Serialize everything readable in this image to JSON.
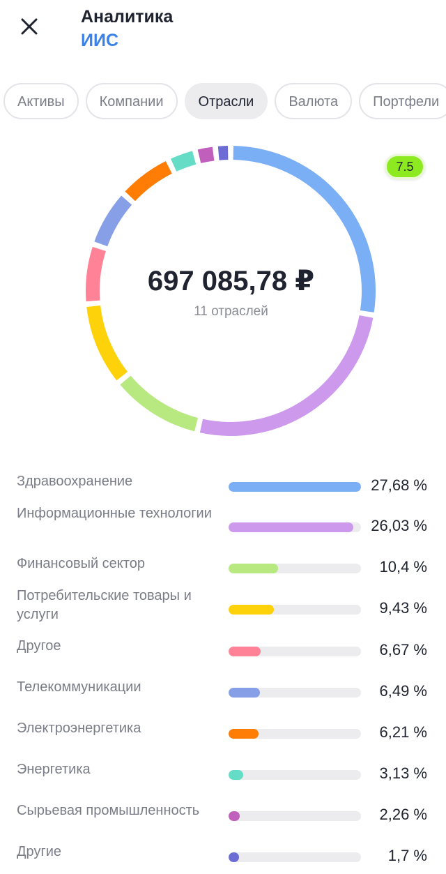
{
  "header": {
    "title": "Аналитика",
    "subtitle": "ИИС"
  },
  "tabs": [
    {
      "label": "Активы",
      "active": false
    },
    {
      "label": "Компании",
      "active": false
    },
    {
      "label": "Отрасли",
      "active": true
    },
    {
      "label": "Валюта",
      "active": false
    },
    {
      "label": "Портфели",
      "active": false
    }
  ],
  "summary": {
    "total": "697 085,78 ₽",
    "count_label": "11 отраслей",
    "badge": "7.5"
  },
  "sectors": [
    {
      "name": "Здравоохранение",
      "percent": 27.68,
      "percent_text": "27,68 %",
      "color": "#7aaef5"
    },
    {
      "name": "Информационные технологии",
      "percent": 26.03,
      "percent_text": "26,03 %",
      "color": "#cc99ec"
    },
    {
      "name": "Финансовый сектор",
      "percent": 10.4,
      "percent_text": "10,4 %",
      "color": "#b8e880"
    },
    {
      "name": "Потребительские товары и услуги",
      "percent": 9.43,
      "percent_text": "9,43 %",
      "color": "#fdd20a"
    },
    {
      "name": "Другое",
      "percent": 6.67,
      "percent_text": "6,67 %",
      "color": "#ff8296"
    },
    {
      "name": "Телекоммуникации",
      "percent": 6.49,
      "percent_text": "6,49 %",
      "color": "#869fe6"
    },
    {
      "name": "Электроэнергетика",
      "percent": 6.21,
      "percent_text": "6,21 %",
      "color": "#ff7d05"
    },
    {
      "name": "Энергетика",
      "percent": 3.13,
      "percent_text": "3,13 %",
      "color": "#64dcc6"
    },
    {
      "name": "Сырьевая промышленность",
      "percent": 2.26,
      "percent_text": "2,26 %",
      "color": "#c05fbc"
    },
    {
      "name": "Другие",
      "percent": 1.7,
      "percent_text": "1,7 %",
      "color": "#6c6cd4"
    }
  ]
}
